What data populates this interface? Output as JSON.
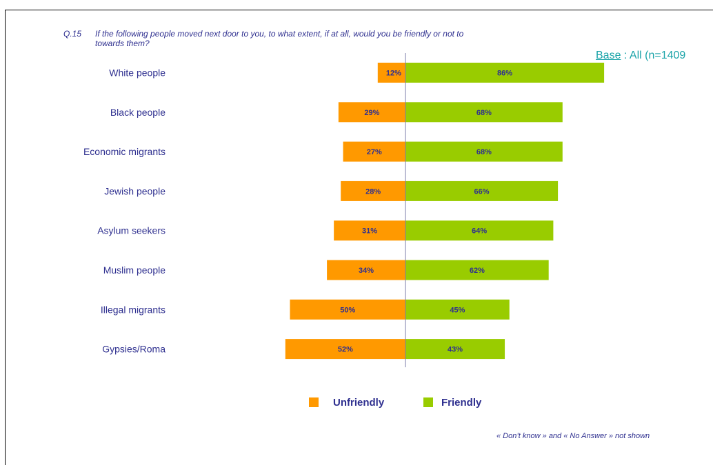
{
  "question": {
    "number": "Q.15",
    "line1": "If the following people moved next door to you, to what extent, if at all, would you be friendly or not to",
    "line2": "towards them?"
  },
  "base": {
    "label": "Base",
    "value": " : All (n=1409"
  },
  "footnote": "« Don’t know » and « No Answer » not shown",
  "colors": {
    "unfriendly": "#ff9900",
    "friendly": "#99cc00",
    "text": "#2e2f8f",
    "axis": "#7a7ba8"
  },
  "chart_data": {
    "type": "bar",
    "orientation": "horizontal-diverging",
    "categories": [
      "White people",
      "Black people",
      "Economic migrants",
      "Jewish people",
      "Asylum seekers",
      "Muslim people",
      "Illegal migrants",
      "Gypsies/Roma"
    ],
    "series": [
      {
        "name": "Unfriendly",
        "values": [
          12,
          29,
          27,
          28,
          31,
          34,
          50,
          52
        ],
        "labels": [
          "12%",
          "29%",
          "27%",
          "28%",
          "31%",
          "34%",
          "50%",
          "52%"
        ]
      },
      {
        "name": "Friendly",
        "values": [
          86,
          68,
          68,
          66,
          64,
          62,
          45,
          43
        ],
        "labels": [
          "86%",
          "68%",
          "68%",
          "66%",
          "64%",
          "62%",
          "45%",
          "43%"
        ]
      }
    ],
    "legend_position": "bottom",
    "grid": false
  }
}
